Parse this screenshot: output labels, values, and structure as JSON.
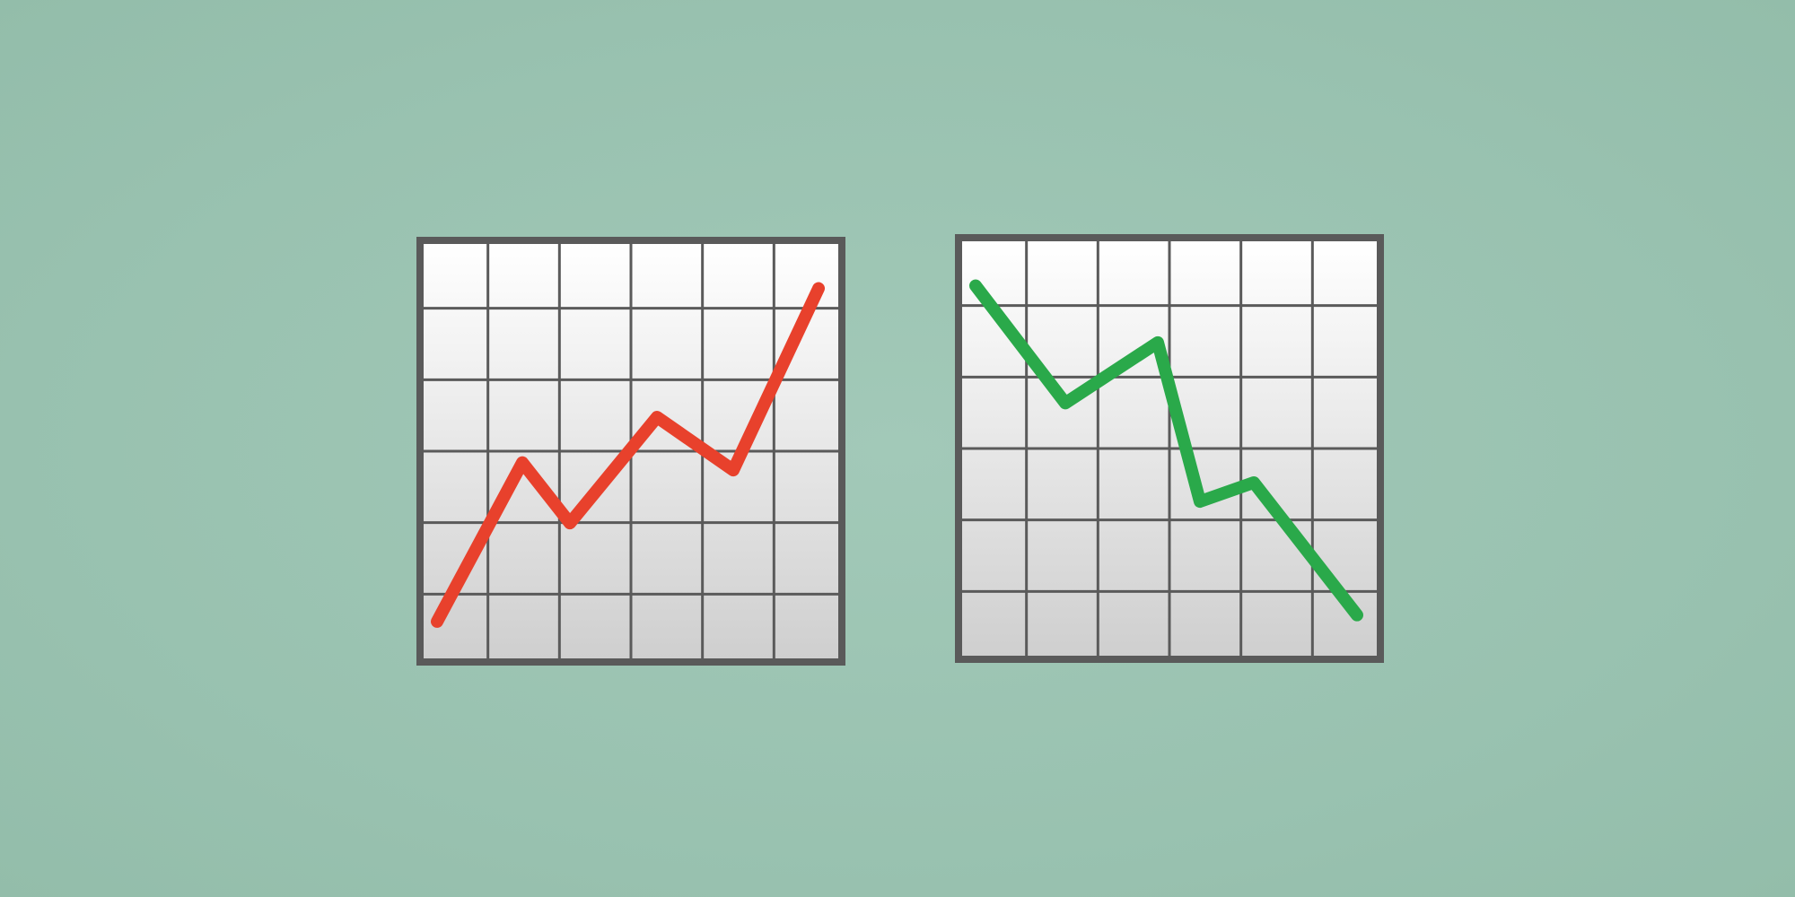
{
  "scene": {
    "background_color": "#9cc5b4",
    "icons": [
      {
        "id": "chart-rising",
        "name": "chart-increasing-icon",
        "trend": "increasing",
        "line_color": "#e8412c",
        "grid_columns": 6,
        "grid_rows": 6,
        "series": [
          0.05,
          0.47,
          0.31,
          0.59,
          0.45,
          0.93
        ]
      },
      {
        "id": "chart-falling",
        "name": "chart-decreasing-icon",
        "trend": "decreasing",
        "line_color": "#2aa94a",
        "grid_columns": 6,
        "grid_rows": 6,
        "series": [
          0.93,
          0.62,
          0.78,
          0.36,
          0.41,
          0.06
        ]
      }
    ],
    "frame_color": "#5a5a5a",
    "panel_gradient": [
      "#ffffff",
      "#cfcfcf"
    ]
  }
}
